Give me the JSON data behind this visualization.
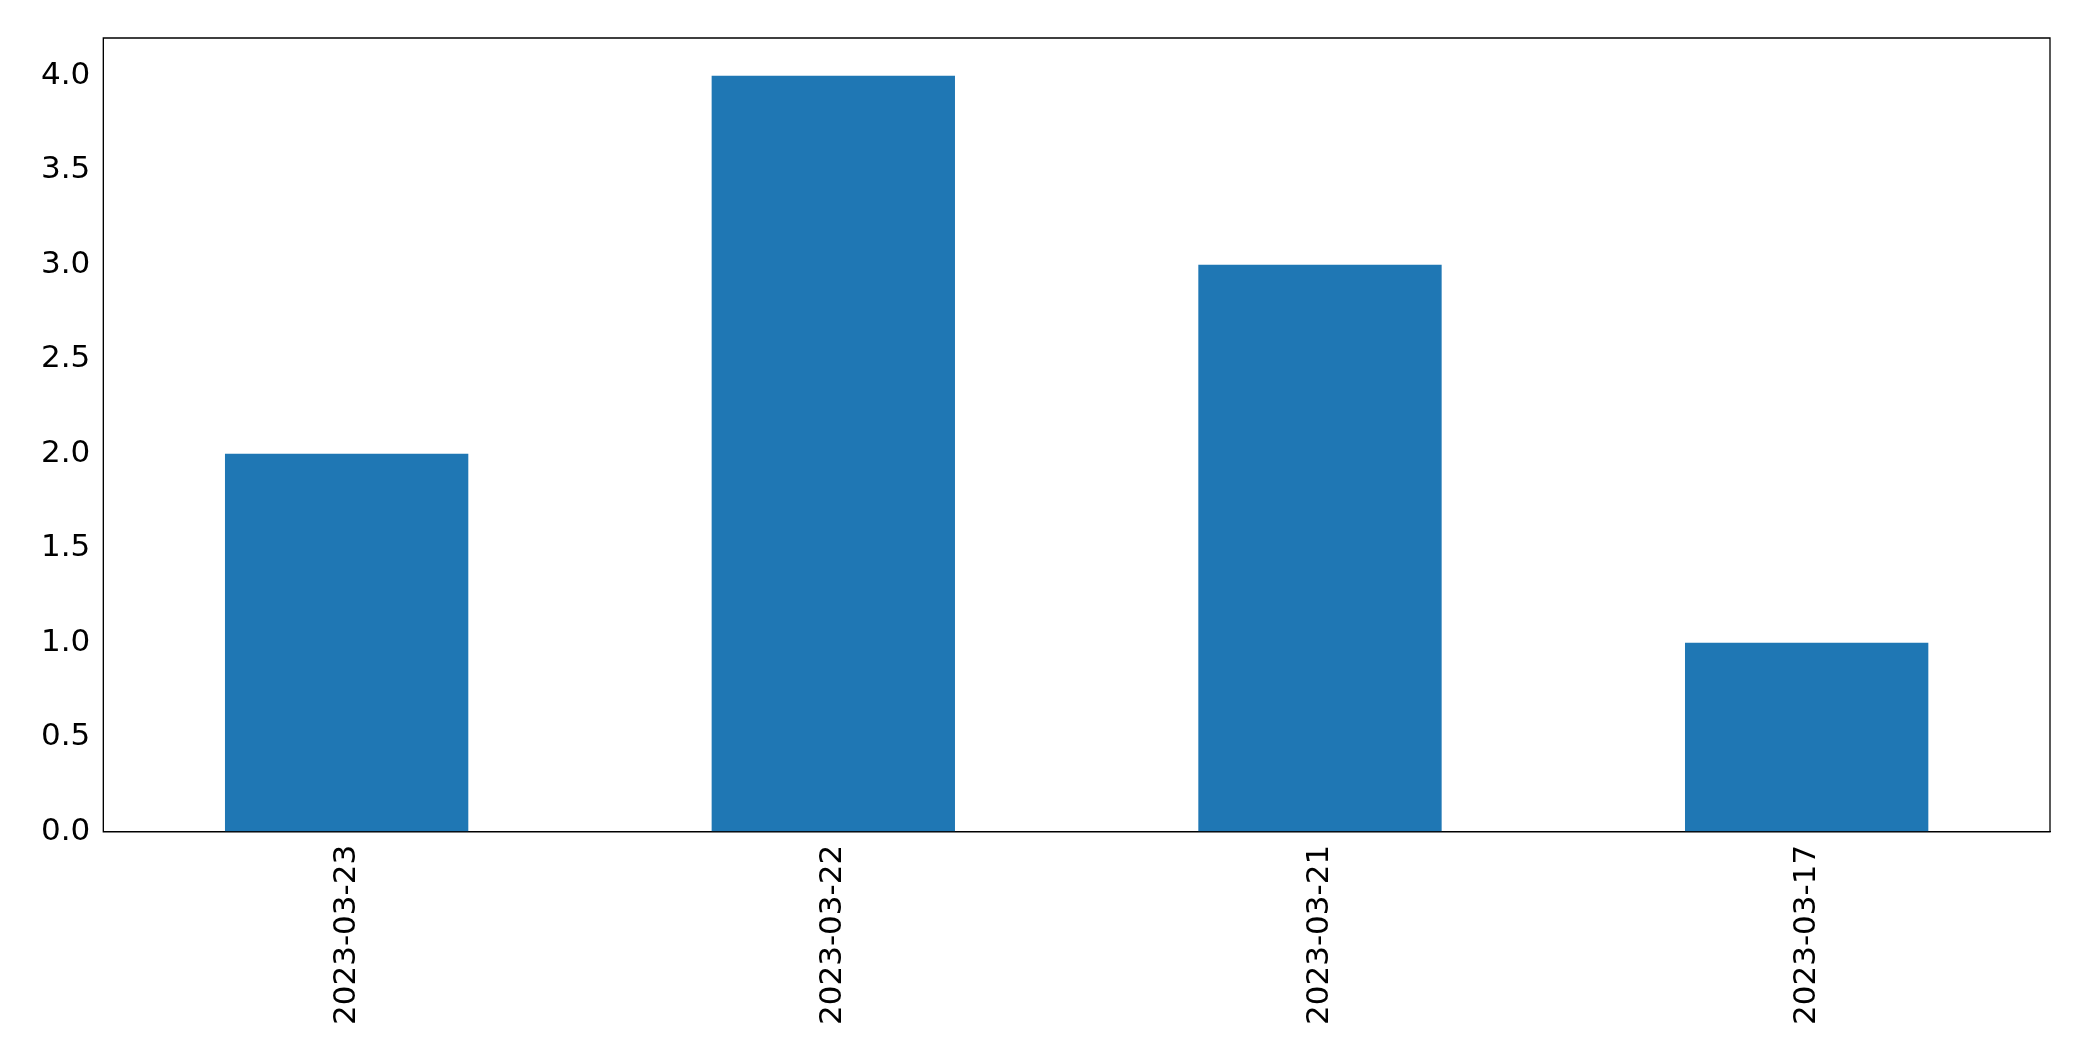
{
  "chart_data": {
    "type": "bar",
    "categories": [
      "2023-03-23",
      "2023-03-22",
      "2023-03-21",
      "2023-03-17"
    ],
    "values": [
      2,
      4,
      3,
      1
    ],
    "color": "#1f77b4",
    "ylim": [
      0,
      4.2
    ],
    "yticks": [
      {
        "value": 0,
        "label": "0.0"
      },
      {
        "value": 0.5,
        "label": "0.5"
      },
      {
        "value": 1,
        "label": "1.0"
      },
      {
        "value": 1.5,
        "label": "1.5"
      },
      {
        "value": 2,
        "label": "2.0"
      },
      {
        "value": 2.5,
        "label": "2.5"
      },
      {
        "value": 3,
        "label": "3.0"
      },
      {
        "value": 3.5,
        "label": "3.5"
      },
      {
        "value": 4,
        "label": "4.0"
      }
    ],
    "grid": false,
    "legend": false
  }
}
